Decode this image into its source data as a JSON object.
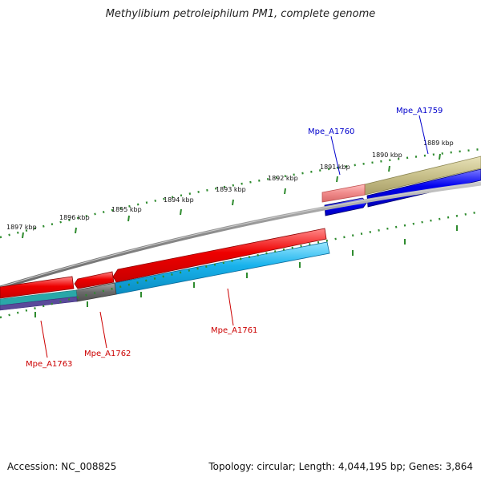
{
  "title": "Methylibium petroleiphilum PM1, complete genome",
  "footer": {
    "accession": "Accession: NC_008825",
    "summary": "Topology: circular; Length: 4,044,195 bp; Genes: 3,864"
  },
  "ruler": {
    "unit": "kbp",
    "labels": [
      "1897 kbp",
      "1896 kbp",
      "1895 kbp",
      "1894 kbp",
      "1893 kbp",
      "1892 kbp",
      "1891 kbp",
      "1890 kbp",
      "1889 kbp"
    ]
  },
  "genes": [
    {
      "name": "Mpe_A1759",
      "strand": "forward",
      "color": "#0000cc"
    },
    {
      "name": "Mpe_A1760",
      "strand": "forward",
      "color": "#0000cc"
    },
    {
      "name": "Mpe_A1761",
      "strand": "reverse",
      "color": "#cc0000"
    },
    {
      "name": "Mpe_A1762",
      "strand": "reverse",
      "color": "#cc0000"
    },
    {
      "name": "Mpe_A1763",
      "strand": "reverse",
      "color": "#cc0000"
    }
  ],
  "colors": {
    "backbone": "#8a8a8a",
    "forward_cds": "#0000ee",
    "reverse_cds": "#ee0000",
    "tick": "#2e8b2e",
    "tan_feature": "#c8c08a",
    "pink_feature": "#f08a8a",
    "cyan_feature": "#1ab0e8",
    "gray_feature": "#6a6a6a"
  }
}
